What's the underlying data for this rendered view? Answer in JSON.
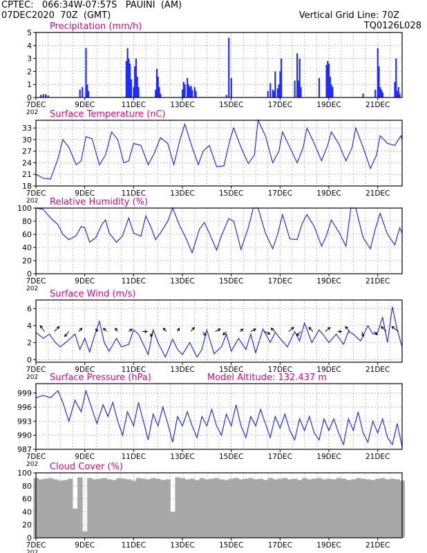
{
  "header": {
    "line1": "CPTEC:   066:34W-07:57S   PAUINI  (AM)",
    "line2": "07DEC2020  70Z  (GMT)",
    "grid_note": "Vertical Grid Line: 70Z",
    "code": "TQ0126L028",
    "model_altitude": "Model Altitude: 132.437  m"
  },
  "colors": {
    "header": "#e07a00",
    "title": "#e0007c",
    "series": "#1f2bff",
    "cloud": "#a8a8a8",
    "grid": "#8c8c8c"
  },
  "x_axis": {
    "start": "7DEC",
    "end": "22DEC",
    "tick_labels": [
      "7DEC",
      "9DEC",
      "11DEC",
      "13DEC",
      "15DEC",
      "17DEC",
      "19DEC",
      "21DEC"
    ],
    "tick_days": [
      7,
      9,
      11,
      13,
      15,
      17,
      19,
      21
    ],
    "year_fragment": "202"
  },
  "chart_data": [
    {
      "type": "bar",
      "title": "Precipitation  (mm/h)",
      "ylim": [
        0,
        5
      ],
      "yticks": [
        0,
        1,
        2,
        3,
        4,
        5
      ],
      "x_unit": "day of December 2020",
      "x": [
        7.2,
        7.3,
        7.4,
        7.5,
        8.8,
        8.9,
        9.05,
        9.1,
        9.15,
        10.7,
        10.75,
        10.8,
        10.85,
        10.9,
        11.0,
        11.05,
        11.1,
        11.15,
        11.2,
        11.9,
        11.95,
        12.0,
        12.05,
        12.1,
        13.0,
        13.05,
        13.1,
        13.2,
        13.25,
        13.3,
        13.35,
        13.4,
        13.5,
        13.55,
        14.8,
        14.9,
        15.0,
        16.5,
        16.6,
        16.7,
        16.75,
        16.8,
        16.9,
        16.95,
        17.0,
        17.05,
        17.6,
        17.7,
        17.75,
        17.8,
        17.85,
        18.6,
        18.9,
        18.95,
        19.0,
        19.05,
        19.1,
        19.15,
        20.4,
        20.9,
        21.0,
        21.05,
        21.1,
        21.15,
        21.2,
        21.7,
        21.75,
        21.8,
        21.85,
        21.9
      ],
      "values": [
        0.2,
        0.25,
        0.25,
        0.15,
        0.6,
        0.8,
        3.8,
        1.0,
        0.5,
        2.8,
        3.8,
        3.0,
        2.6,
        1.4,
        0.8,
        2.4,
        3.0,
        1.6,
        0.8,
        0.6,
        2.2,
        1.6,
        0.8,
        0.3,
        0.6,
        1.2,
        1.0,
        1.5,
        1.0,
        0.8,
        0.9,
        0.6,
        0.8,
        0.5,
        0.2,
        4.6,
        1.5,
        0.5,
        1.1,
        0.6,
        0.5,
        2.0,
        0.7,
        1.0,
        2.0,
        3.0,
        1.3,
        3.4,
        1.3,
        3.0,
        0.8,
        1.5,
        2.5,
        2.8,
        2.6,
        1.6,
        1.0,
        0.8,
        0.3,
        0.6,
        3.8,
        2.4,
        0.8,
        0.6,
        0.4,
        1.2,
        3.0,
        0.5,
        0.8,
        0.3
      ]
    },
    {
      "type": "line",
      "title": "Surface Temperature  (nC)",
      "ylim": [
        18,
        35
      ],
      "yticks": [
        18,
        21,
        24,
        27,
        30,
        33
      ],
      "x_unit": "day of December 2020",
      "x": [
        7.0,
        7.3,
        7.6,
        7.9,
        8.1,
        8.35,
        8.65,
        8.85,
        9.05,
        9.3,
        9.6,
        9.85,
        10.1,
        10.35,
        10.6,
        10.8,
        11.0,
        11.3,
        11.6,
        11.85,
        12.1,
        12.4,
        12.65,
        12.9,
        13.1,
        13.4,
        13.65,
        13.85,
        14.1,
        14.4,
        14.7,
        14.95,
        15.1,
        15.4,
        15.7,
        15.95,
        16.1,
        16.4,
        16.7,
        16.95,
        17.1,
        17.4,
        17.7,
        17.95,
        18.1,
        18.4,
        18.7,
        18.95,
        19.1,
        19.4,
        19.7,
        19.95,
        20.1,
        20.4,
        20.7,
        20.95,
        21.1,
        21.4,
        21.7,
        21.95,
        22.0
      ],
      "values": [
        21.0,
        20.0,
        19.8,
        25.0,
        30.0,
        28.0,
        23.5,
        24.5,
        30.8,
        30.2,
        23.5,
        26.0,
        32.0,
        30.0,
        24.0,
        24.5,
        29.0,
        28.5,
        23.5,
        26.5,
        30.5,
        29.0,
        23.5,
        30.0,
        34.0,
        28.0,
        23.5,
        27.0,
        28.5,
        23.0,
        23.2,
        30.0,
        33.0,
        28.0,
        23.8,
        26.0,
        35.0,
        31.0,
        24.0,
        27.0,
        32.0,
        28.0,
        24.0,
        28.0,
        33.0,
        29.0,
        24.5,
        28.5,
        32.0,
        29.0,
        24.5,
        28.0,
        33.0,
        28.0,
        22.5,
        26.0,
        31.0,
        29.0,
        28.5,
        31.0,
        30.0
      ]
    },
    {
      "type": "line",
      "title": "Relative Humidity  (%)",
      "ylim": [
        0,
        100
      ],
      "yticks": [
        0,
        20,
        40,
        60,
        80,
        100
      ],
      "x_unit": "day of December 2020",
      "x": [
        7.0,
        7.3,
        7.6,
        7.9,
        8.1,
        8.35,
        8.65,
        8.85,
        9.0,
        9.2,
        9.45,
        9.7,
        9.85,
        10.0,
        10.3,
        10.55,
        10.8,
        11.0,
        11.3,
        11.5,
        11.7,
        11.9,
        12.1,
        12.4,
        12.6,
        12.9,
        13.1,
        13.4,
        13.7,
        13.9,
        14.1,
        14.4,
        14.6,
        14.9,
        15.1,
        15.4,
        15.7,
        15.9,
        16.1,
        16.4,
        16.7,
        16.9,
        17.1,
        17.4,
        17.7,
        17.9,
        18.1,
        18.4,
        18.7,
        18.9,
        19.1,
        19.4,
        19.7,
        19.9,
        20.1,
        20.4,
        20.7,
        20.9,
        21.1,
        21.4,
        21.7,
        21.9,
        22.0
      ],
      "values": [
        100,
        98,
        85,
        75,
        60,
        52,
        58,
        72,
        70,
        48,
        55,
        75,
        82,
        62,
        48,
        58,
        85,
        62,
        57,
        88,
        72,
        52,
        62,
        80,
        100,
        72,
        58,
        32,
        68,
        78,
        62,
        36,
        58,
        84,
        80,
        37,
        70,
        100,
        100,
        62,
        38,
        60,
        90,
        53,
        52,
        76,
        90,
        72,
        42,
        58,
        82,
        64,
        42,
        100,
        100,
        55,
        38,
        68,
        92,
        60,
        44,
        70,
        62
      ]
    },
    {
      "type": "line",
      "title": "Surface Wind  (m/s)",
      "ylim": [
        -0.3,
        7
      ],
      "yticks": [
        0,
        2,
        4,
        6
      ],
      "x_unit": "day of December 2020",
      "x": [
        7.0,
        7.3,
        7.55,
        7.8,
        8.0,
        8.3,
        8.6,
        8.8,
        9.0,
        9.2,
        9.4,
        9.6,
        9.8,
        10.0,
        10.3,
        10.5,
        10.8,
        11.0,
        11.2,
        11.4,
        11.6,
        11.8,
        12.0,
        12.3,
        12.6,
        12.8,
        13.0,
        13.3,
        13.6,
        13.8,
        14.0,
        14.3,
        14.6,
        14.8,
        15.0,
        15.3,
        15.6,
        15.8,
        16.0,
        16.3,
        16.6,
        16.8,
        17.0,
        17.3,
        17.6,
        17.8,
        18.0,
        18.3,
        18.6,
        18.8,
        19.0,
        19.3,
        19.6,
        19.8,
        20.0,
        20.3,
        20.6,
        20.8,
        21.0,
        21.2,
        21.4,
        21.6,
        21.8,
        22.0
      ],
      "values": [
        3.2,
        2.5,
        3.0,
        2.0,
        1.5,
        2.2,
        3.0,
        1.2,
        2.5,
        0.9,
        2.8,
        4.5,
        2.0,
        1.0,
        2.5,
        1.5,
        1.8,
        3.5,
        3.0,
        1.8,
        0.6,
        3.5,
        2.0,
        0.3,
        2.4,
        1.2,
        0.6,
        2.0,
        0.3,
        1.2,
        3.5,
        0.7,
        1.5,
        3.0,
        1.0,
        2.5,
        1.2,
        3.0,
        0.8,
        3.6,
        2.0,
        3.2,
        2.5,
        1.5,
        3.3,
        2.2,
        4.3,
        2.0,
        3.5,
        2.8,
        2.0,
        3.0,
        1.8,
        3.3,
        3.0,
        2.2,
        4.0,
        3.0,
        3.2,
        5.0,
        2.0,
        6.2,
        3.5,
        1.5
      ],
      "arrows": {
        "x": [
          7.35,
          7.75,
          8.35,
          8.75,
          9.55,
          9.9,
          10.35,
          10.8,
          11.35,
          11.8,
          12.35,
          12.8,
          13.35,
          13.85,
          14.35,
          14.8,
          15.35,
          15.8,
          16.35,
          16.8,
          17.35,
          17.85,
          18.35,
          18.85,
          19.35,
          19.85,
          20.35,
          20.85,
          21.35,
          21.85
        ],
        "u": [
          -0.5,
          0.6,
          -0.5,
          0.4,
          -0.3,
          -0.4,
          -0.3,
          0.4,
          0.6,
          -0.3,
          -0.4,
          0.2,
          0.4,
          0.3,
          0.6,
          -0.4,
          0.4,
          0.6,
          0.7,
          -0.5,
          0.6,
          -0.5,
          -0.5,
          0.6,
          0.5,
          -0.5,
          0.2,
          0.4,
          -0.6,
          -0.8
        ],
        "v": [
          0.7,
          0.6,
          -0.6,
          0.4,
          0.3,
          0.4,
          0.4,
          0.3,
          0.0,
          -0.6,
          0.4,
          0.4,
          0.5,
          -0.5,
          0.3,
          -0.4,
          0.3,
          0.3,
          -0.3,
          0.4,
          0.5,
          -0.5,
          0.5,
          0.5,
          0.0,
          0.6,
          -0.6,
          -0.4,
          0.6,
          0.6
        ]
      }
    },
    {
      "type": "line",
      "title": "Surface Pressure  (hPa)",
      "ylim": [
        987,
        1001
      ],
      "yticks": [
        987,
        990,
        993,
        996,
        999
      ],
      "x_unit": "day of December 2020",
      "x": [
        7.0,
        7.3,
        7.6,
        7.9,
        8.1,
        8.35,
        8.6,
        8.85,
        9.05,
        9.3,
        9.5,
        9.75,
        9.95,
        10.15,
        10.35,
        10.55,
        10.75,
        11.0,
        11.2,
        11.4,
        11.6,
        11.8,
        12.0,
        12.2,
        12.4,
        12.6,
        12.8,
        13.0,
        13.2,
        13.4,
        13.6,
        13.8,
        14.0,
        14.2,
        14.4,
        14.6,
        14.8,
        15.0,
        15.2,
        15.4,
        15.6,
        15.8,
        16.0,
        16.2,
        16.4,
        16.6,
        16.8,
        17.0,
        17.2,
        17.4,
        17.6,
        17.8,
        18.0,
        18.2,
        18.4,
        18.6,
        18.8,
        19.0,
        19.2,
        19.4,
        19.6,
        19.8,
        20.0,
        20.2,
        20.4,
        20.6,
        20.8,
        21.0,
        21.2,
        21.4,
        21.6,
        21.8,
        22.0
      ],
      "values": [
        998.0,
        998.5,
        998.0,
        999.5,
        997.0,
        993.0,
        997.5,
        995.0,
        999.5,
        995.5,
        992.5,
        996.5,
        994.0,
        997.0,
        993.0,
        990.0,
        995.0,
        992.0,
        997.0,
        993.0,
        989.0,
        994.5,
        992.0,
        996.0,
        992.5,
        988.5,
        994.0,
        992.0,
        995.0,
        992.0,
        989.5,
        994.0,
        992.0,
        995.5,
        992.0,
        990.0,
        994.5,
        992.0,
        996.5,
        992.0,
        989.5,
        994.0,
        992.0,
        995.5,
        992.5,
        989.5,
        994.0,
        991.5,
        994.5,
        991.0,
        989.0,
        993.5,
        991.0,
        994.0,
        990.5,
        989.0,
        993.5,
        991.0,
        993.5,
        990.5,
        988.0,
        993.5,
        991.0,
        995.0,
        990.5,
        988.5,
        993.0,
        990.5,
        993.5,
        989.5,
        988.0,
        992.5,
        987.5
      ]
    },
    {
      "type": "bar",
      "title": "Cloud Cover  (%)",
      "ylim": [
        0,
        100
      ],
      "yticks": [
        0,
        20,
        40,
        60,
        80,
        100
      ],
      "x_unit": "day of December 2020",
      "x": [
        7.0,
        7.2,
        7.4,
        7.6,
        7.8,
        8.0,
        8.2,
        8.4,
        8.6,
        8.8,
        9.0,
        9.2,
        9.4,
        9.6,
        9.8,
        10.0,
        10.2,
        10.4,
        10.6,
        10.8,
        11.0,
        11.2,
        11.4,
        11.6,
        11.8,
        12.0,
        12.2,
        12.4,
        12.6,
        12.8,
        13.0,
        13.2,
        13.4,
        13.6,
        13.8,
        14.0,
        14.2,
        14.4,
        14.6,
        14.8,
        15.0,
        15.2,
        15.4,
        15.6,
        15.8,
        16.0,
        16.2,
        16.4,
        16.6,
        16.8,
        17.0,
        17.2,
        17.4,
        17.6,
        17.8,
        18.0,
        18.2,
        18.4,
        18.6,
        18.8,
        19.0,
        19.2,
        19.4,
        19.6,
        19.8,
        20.0,
        20.2,
        20.4,
        20.6,
        20.8,
        21.0,
        21.2,
        21.4,
        21.6,
        21.8,
        22.0
      ],
      "values": [
        92,
        90,
        91,
        92,
        90,
        88,
        89,
        91,
        45,
        93,
        10,
        92,
        90,
        91,
        92,
        90,
        89,
        92,
        91,
        90,
        88,
        92,
        91,
        90,
        92,
        91,
        89,
        90,
        40,
        93,
        92,
        90,
        91,
        89,
        92,
        90,
        91,
        92,
        90,
        89,
        91,
        92,
        90,
        91,
        92,
        90,
        91,
        89,
        92,
        90,
        91,
        92,
        90,
        91,
        89,
        92,
        90,
        91,
        92,
        90,
        91,
        90,
        92,
        91,
        89,
        90,
        92,
        91,
        90,
        89,
        91,
        92,
        90,
        91,
        90,
        88
      ]
    }
  ]
}
